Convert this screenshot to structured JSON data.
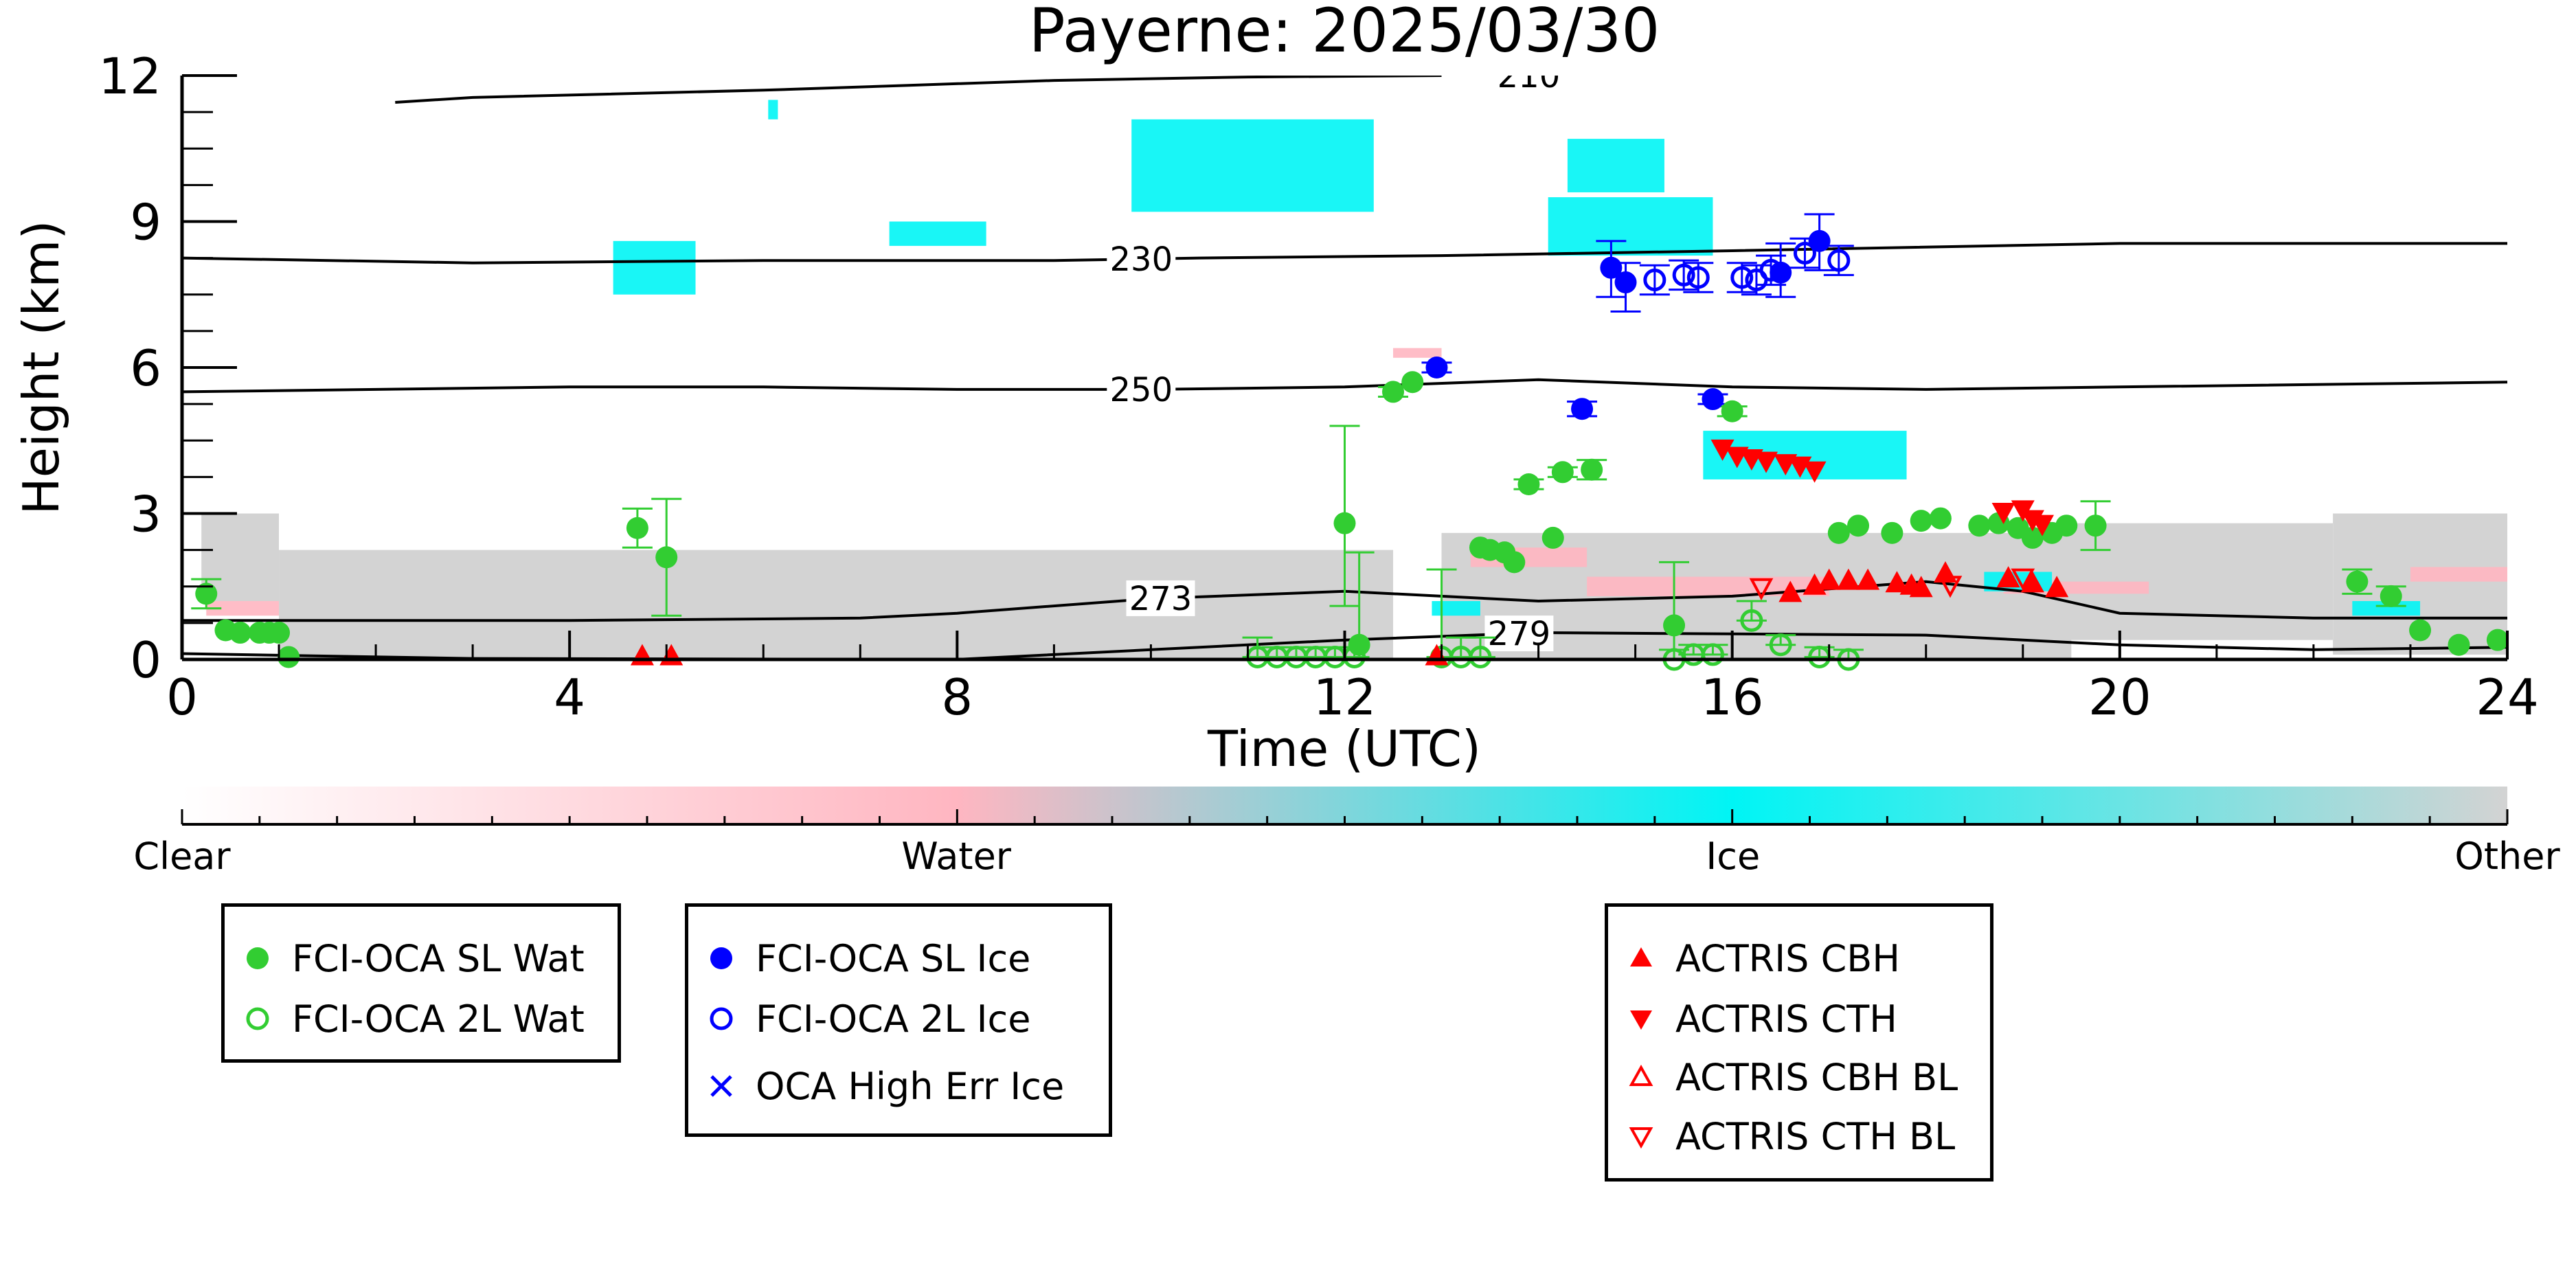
{
  "chart_data": {
    "type": "scatter",
    "title": "Payerne: 2025/03/30",
    "xlabel": "Time (UTC)",
    "ylabel": "Height (km)",
    "xlim": [
      0,
      24
    ],
    "ylim": [
      0,
      12
    ],
    "xticks": [
      0,
      4,
      8,
      12,
      16,
      20,
      24
    ],
    "yticks": [
      0,
      3,
      6,
      9,
      12
    ],
    "colorbar": {
      "labels": [
        "Clear",
        "Water",
        "Ice",
        "Other"
      ],
      "stops": [
        0,
        0.333,
        0.667,
        1
      ],
      "colors": [
        "#ffffff",
        "#ffb6c1",
        "#00f5f5",
        "#d3d3d3"
      ]
    },
    "isotherms": [
      {
        "label": "230",
        "label_x": 9.9,
        "points": [
          [
            0,
            8.25
          ],
          [
            3,
            8.15
          ],
          [
            6,
            8.2
          ],
          [
            9,
            8.2
          ],
          [
            10.5,
            8.25
          ],
          [
            13,
            8.3
          ],
          [
            16,
            8.4
          ],
          [
            20,
            8.55
          ],
          [
            24,
            8.55
          ]
        ]
      },
      {
        "label": "250",
        "label_x": 9.9,
        "points": [
          [
            0,
            5.5
          ],
          [
            2,
            5.55
          ],
          [
            4,
            5.6
          ],
          [
            6,
            5.6
          ],
          [
            8,
            5.55
          ],
          [
            10,
            5.55
          ],
          [
            12,
            5.6
          ],
          [
            14,
            5.75
          ],
          [
            16,
            5.6
          ],
          [
            18,
            5.55
          ],
          [
            20,
            5.6
          ],
          [
            24,
            5.7
          ]
        ]
      },
      {
        "label": "273",
        "label_x": 10.1,
        "points": [
          [
            0,
            0.8
          ],
          [
            4,
            0.8
          ],
          [
            7,
            0.85
          ],
          [
            8,
            0.95
          ],
          [
            10,
            1.25
          ],
          [
            12,
            1.4
          ],
          [
            13,
            1.3
          ],
          [
            14,
            1.2
          ],
          [
            16,
            1.3
          ],
          [
            18,
            1.6
          ],
          [
            19,
            1.4
          ],
          [
            20,
            0.95
          ],
          [
            22,
            0.85
          ],
          [
            24,
            0.85
          ]
        ]
      },
      {
        "label": "279",
        "label_x": 13.8,
        "points": [
          [
            0,
            0.12
          ],
          [
            3,
            0.02
          ],
          [
            8,
            0.0
          ],
          [
            10,
            0.2
          ],
          [
            12,
            0.4
          ],
          [
            14,
            0.55
          ],
          [
            18,
            0.5
          ],
          [
            20,
            0.3
          ],
          [
            22,
            0.2
          ],
          [
            24,
            0.25
          ]
        ]
      },
      {
        "label": "210",
        "label_x": 13.9,
        "points": [
          [
            2.2,
            11.45
          ],
          [
            3,
            11.55
          ],
          [
            6,
            11.7
          ],
          [
            7.5,
            11.8
          ],
          [
            9,
            11.9
          ],
          [
            11,
            11.97
          ],
          [
            13,
            12.0
          ]
        ]
      }
    ],
    "series": [
      {
        "name": "FCI-OCA SL Wat",
        "marker": "circle-filled",
        "color": "#32cd32",
        "x": [
          0.25,
          0.45,
          0.6,
          0.8,
          0.9,
          1.0,
          1.1,
          4.7,
          5.0,
          12.0,
          12.15,
          12.5,
          12.7,
          13.4,
          13.5,
          13.65,
          13.75,
          13.9,
          14.15,
          14.25,
          14.55,
          15.4,
          16.0,
          17.1,
          17.3,
          17.65,
          17.95,
          18.15,
          18.55,
          18.75,
          18.95,
          19.1,
          19.3,
          19.45,
          19.75,
          22.45,
          22.8,
          23.1,
          23.5,
          23.9
        ],
        "y": [
          1.35,
          0.6,
          0.55,
          0.55,
          0.55,
          0.55,
          0.05,
          2.7,
          2.1,
          2.8,
          0.3,
          5.5,
          5.7,
          2.3,
          2.25,
          2.2,
          2.0,
          3.6,
          2.5,
          3.85,
          3.9,
          0.7,
          5.1,
          2.6,
          2.75,
          2.6,
          2.85,
          2.9,
          2.75,
          2.8,
          2.7,
          2.5,
          2.6,
          2.75,
          2.75,
          1.6,
          1.3,
          0.6,
          0.3,
          0.4
        ],
        "yerr_low": [
          0.3,
          0,
          0,
          0,
          0,
          0,
          0,
          0.4,
          1.2,
          1.7,
          0.3,
          0.1,
          0,
          0,
          0,
          0,
          0,
          0.1,
          0,
          0.1,
          0.2,
          0.7,
          0.1,
          0,
          0,
          0,
          0,
          0,
          0,
          0,
          0,
          0,
          0,
          0,
          0.5,
          0.25,
          0.2,
          0,
          0,
          0
        ],
        "yerr_high": [
          0.3,
          0,
          0,
          0,
          0,
          0,
          0,
          0.4,
          1.2,
          2.0,
          1.9,
          0.1,
          0,
          0,
          0,
          0,
          0,
          0.1,
          0,
          0.1,
          0.2,
          1.3,
          0.1,
          0,
          0,
          0,
          0,
          0,
          0,
          0,
          0,
          0,
          0,
          0,
          0.5,
          0.25,
          0.2,
          0,
          0,
          0
        ]
      },
      {
        "name": "FCI-OCA 2L Wat",
        "marker": "circle-open",
        "color": "#32cd32",
        "x": [
          11.1,
          11.3,
          11.5,
          11.7,
          11.9,
          12.1,
          13.0,
          13.2,
          13.4,
          15.4,
          15.6,
          15.8,
          16.2,
          16.5,
          16.9,
          17.2
        ],
        "y": [
          0.05,
          0.05,
          0.05,
          0.05,
          0.05,
          0.05,
          0.05,
          0.05,
          0.05,
          0.0,
          0.1,
          0.1,
          0.8,
          0.3,
          0.05,
          0.0
        ],
        "yerr_low": [
          0,
          0,
          0,
          0,
          0,
          0,
          0,
          0,
          0,
          0,
          0,
          0,
          0,
          0,
          0,
          0
        ],
        "yerr_high": [
          0.4,
          0.2,
          0.2,
          0.2,
          0.2,
          0.2,
          1.8,
          0.4,
          0.4,
          0.2,
          0.2,
          0.2,
          0.4,
          0.2,
          0.2,
          0.2
        ]
      },
      {
        "name": "FCI-OCA SL Ice",
        "marker": "circle-filled",
        "color": "#0000ff",
        "x": [
          12.95,
          14.45,
          14.75,
          14.9,
          15.8,
          16.5,
          16.9
        ],
        "y": [
          6.0,
          5.15,
          8.05,
          7.75,
          5.35,
          7.95,
          8.6
        ],
        "yerr_low": [
          0.1,
          0.15,
          0.6,
          0.6,
          0.1,
          0.5,
          0.6
        ],
        "yerr_high": [
          0.1,
          0.15,
          0.55,
          0.4,
          0.1,
          0.6,
          0.55
        ]
      },
      {
        "name": "FCI-OCA 2L Ice",
        "marker": "circle-open",
        "color": "#0000ff",
        "x": [
          15.2,
          15.5,
          15.65,
          16.1,
          16.25,
          16.4,
          16.75,
          17.1
        ],
        "y": [
          7.8,
          7.9,
          7.85,
          7.85,
          7.8,
          8.0,
          8.35,
          8.2
        ],
        "yerr_low": [
          0.3,
          0.3,
          0.3,
          0.3,
          0.3,
          0.3,
          0.3,
          0.3
        ],
        "yerr_high": [
          0.3,
          0.3,
          0.3,
          0.3,
          0.3,
          0.3,
          0.3,
          0.3
        ]
      },
      {
        "name": "OCA High Err Ice",
        "marker": "x",
        "color": "#0000ff",
        "x": [],
        "y": []
      },
      {
        "name": "ACTRIS CBH",
        "marker": "triangle-up-filled",
        "color": "#ff0000",
        "x": [
          4.75,
          5.05,
          12.95,
          16.6,
          16.85,
          17.0,
          17.2,
          17.4,
          17.7,
          17.85,
          17.95,
          18.2,
          18.85,
          19.1,
          19.35
        ],
        "y": [
          0.05,
          0.05,
          0.05,
          1.35,
          1.5,
          1.6,
          1.6,
          1.6,
          1.55,
          1.5,
          1.45,
          1.75,
          1.65,
          1.55,
          1.45
        ],
        "yerr_low": [],
        "yerr_high": []
      },
      {
        "name": "ACTRIS CTH",
        "marker": "triangle-down-filled",
        "color": "#ff0000",
        "x": [
          15.9,
          16.05,
          16.2,
          16.35,
          16.55,
          16.7,
          16.85,
          18.8,
          19.0,
          19.1,
          19.2
        ],
        "y": [
          4.35,
          4.2,
          4.15,
          4.1,
          4.05,
          4.0,
          3.9,
          3.05,
          3.1,
          2.9,
          2.8
        ],
        "yerr_low": [],
        "yerr_high": []
      },
      {
        "name": "ACTRIS CBH BL",
        "marker": "triangle-up-open",
        "color": "#ff0000",
        "x": [],
        "y": []
      },
      {
        "name": "ACTRIS CTH BL",
        "marker": "triangle-down-open",
        "color": "#ff0000",
        "x": [
          16.3,
          18.25,
          19.0
        ],
        "y": [
          1.5,
          1.55,
          1.7
        ],
        "yerr_low": [],
        "yerr_high": []
      }
    ],
    "legend": {
      "water": [
        "FCI-OCA SL Wat",
        "FCI-OCA 2L Wat"
      ],
      "ice": [
        "FCI-OCA SL Ice",
        "FCI-OCA 2L Ice",
        "OCA High Err Ice"
      ],
      "actris": [
        "ACTRIS CBH",
        "ACTRIS CTH",
        "ACTRIS CBH BL",
        "ACTRIS CTH BL"
      ]
    },
    "background_classes": [
      {
        "class": "Other",
        "x0": 1.0,
        "x1": 12.5,
        "top": 2.25,
        "bottom": 0.0
      },
      {
        "class": "Other",
        "x0": 0.2,
        "x1": 1.0,
        "top": 3.0,
        "bottom": 1.2
      },
      {
        "class": "Other",
        "x0": 13.0,
        "x1": 19.5,
        "top": 2.6,
        "bottom": 0.0
      },
      {
        "class": "Other",
        "x0": 19.4,
        "x1": 22.2,
        "top": 2.8,
        "bottom": 0.4
      },
      {
        "class": "Other",
        "x0": 22.2,
        "x1": 24.0,
        "top": 3.0,
        "bottom": 0.1
      },
      {
        "class": "Water",
        "x0": 14.5,
        "x1": 17.0,
        "top": 1.7,
        "bottom": 1.3
      },
      {
        "class": "Water",
        "x0": 13.3,
        "x1": 14.5,
        "top": 2.3,
        "bottom": 1.9
      },
      {
        "class": "Water",
        "x0": 18.8,
        "x1": 20.3,
        "top": 1.6,
        "bottom": 1.35
      },
      {
        "class": "Water",
        "x0": 0.25,
        "x1": 1.0,
        "top": 1.2,
        "bottom": 0.9
      },
      {
        "class": "Water",
        "x0": 12.5,
        "x1": 13.0,
        "top": 6.4,
        "bottom": 6.2
      },
      {
        "class": "Water",
        "x0": 23.0,
        "x1": 24.0,
        "top": 1.9,
        "bottom": 1.6
      },
      {
        "class": "Ice",
        "x0": 15.7,
        "x1": 17.8,
        "top": 4.7,
        "bottom": 3.7
      },
      {
        "class": "Ice",
        "x0": 14.1,
        "x1": 15.8,
        "top": 9.5,
        "bottom": 8.3
      },
      {
        "class": "Ice",
        "x0": 14.3,
        "x1": 15.3,
        "top": 10.7,
        "bottom": 9.6
      },
      {
        "class": "Ice",
        "x0": 9.8,
        "x1": 12.3,
        "top": 11.1,
        "bottom": 9.2
      },
      {
        "class": "Ice",
        "x0": 4.45,
        "x1": 5.3,
        "top": 8.6,
        "bottom": 7.5
      },
      {
        "class": "Ice",
        "x0": 7.3,
        "x1": 8.3,
        "top": 9.0,
        "bottom": 8.5
      },
      {
        "class": "Ice",
        "x0": 6.05,
        "x1": 6.15,
        "top": 11.5,
        "bottom": 11.1
      },
      {
        "class": "Ice",
        "x0": 12.9,
        "x1": 13.4,
        "top": 1.2,
        "bottom": 0.9
      },
      {
        "class": "Ice",
        "x0": 18.6,
        "x1": 19.3,
        "top": 1.8,
        "bottom": 1.4
      },
      {
        "class": "Ice",
        "x0": 22.4,
        "x1": 23.1,
        "top": 1.2,
        "bottom": 0.9
      }
    ]
  }
}
